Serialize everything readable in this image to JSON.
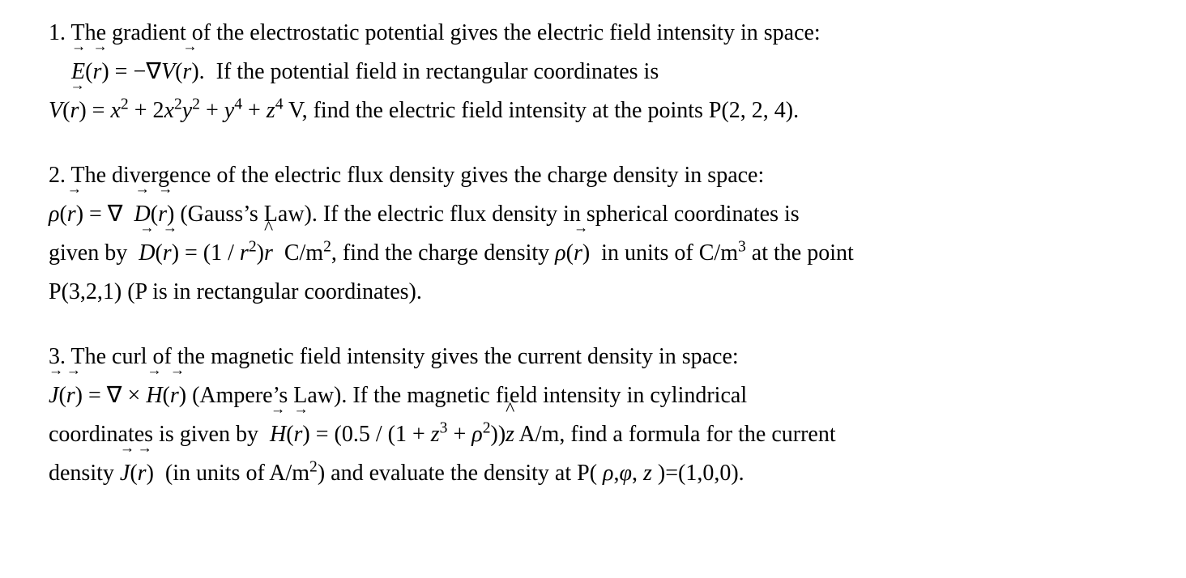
{
  "document": {
    "background_color": "#ffffff",
    "text_color": "#000000",
    "font_family": "Times New Roman",
    "font_size_pt": 21
  },
  "problems": [
    {
      "number": "1.",
      "lines": [
        "1. The gradient of the electrostatic potential gives the electric field intensity in space:",
        "E⃗(r⃗) = −∇V(r⃗). If the potential field in rectangular coordinates is",
        "V(r⃗) = x² + 2x²y² + y⁴ + z⁴ V, find the electric field intensity at the points P(2, 2, 4)."
      ],
      "equation_E": "E⃗(r⃗) = −∇V(r⃗)",
      "equation_V": "V(r⃗) = x² + 2x²y² + y⁴ + z⁴ V",
      "point": "P(2, 2, 4)"
    },
    {
      "number": "2.",
      "lines": [
        "2. The divergence of the electric flux density gives the charge density in space:",
        "ρ(r⃗) = ∇ · D⃗(r⃗) (Gauss's Law). If the electric flux density in spherical coordinates is",
        "given by D⃗(r⃗) = (1/r²)r̂ C/m², find the charge density ρ(r⃗) in units of C/m³ at the point",
        "P(3,2,1) (P is in rectangular coordinates)."
      ],
      "equation_rho": "ρ(r⃗) = ∇ · D⃗(r⃗)",
      "law": "Gauss's Law",
      "equation_D": "D⃗(r⃗) = (1/r²)r̂ C/m²",
      "unit": "C/m³",
      "point": "P(3,2,1)"
    },
    {
      "number": "3.",
      "lines": [
        "3. The curl of the magnetic field intensity gives the current density in space:",
        "J⃗(r⃗) = ∇ × H⃗(r⃗) (Ampere's Law). If the magnetic field intensity in cylindrical",
        "coordinates is given by H⃗(r⃗) = (0.5/(1 + z³ + ρ²))ẑ A/m, find a formula for the current",
        "density J⃗(r⃗) (in units of A/m²) and evaluate the density at P(ρ,φ,z)=(1,0,0)."
      ],
      "equation_J": "J⃗(r⃗) = ∇ × H⃗(r⃗)",
      "law": "Ampere's Law",
      "equation_H": "H⃗(r⃗) = (0.5/(1 + z³ + ρ²))ẑ A/m",
      "unit": "A/m²",
      "point": "P(ρ,φ,z)=(1,0,0)"
    }
  ]
}
